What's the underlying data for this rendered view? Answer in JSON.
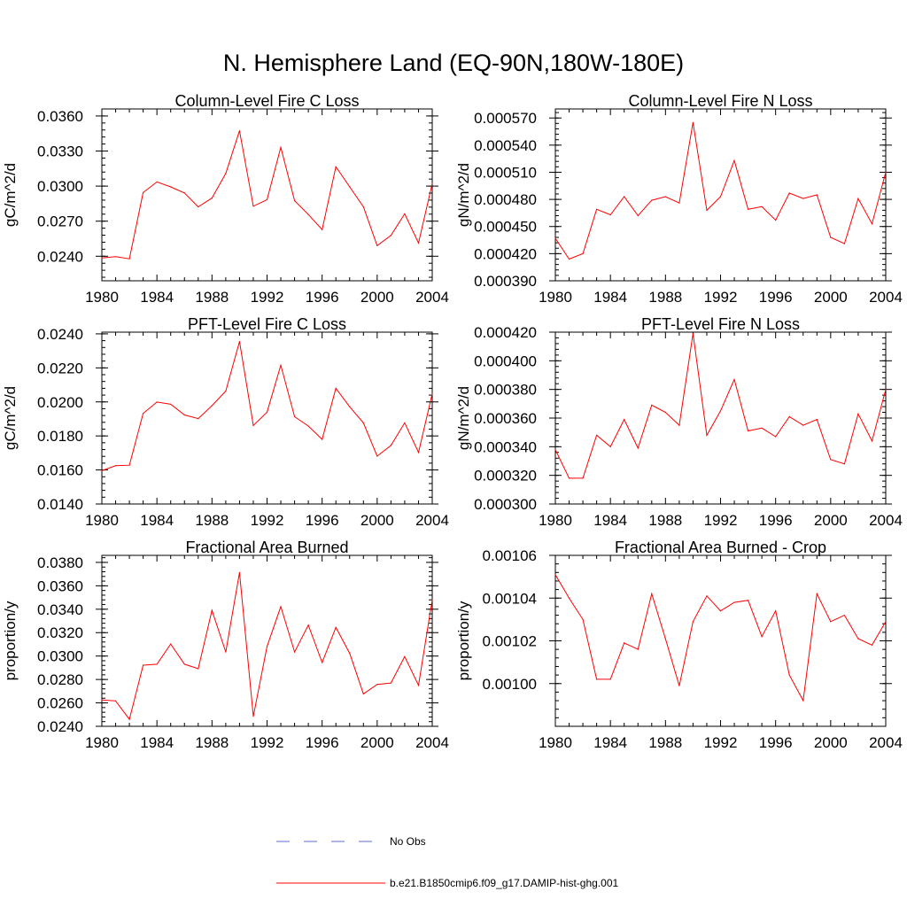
{
  "page": {
    "title": "N. Hemisphere Land (EQ-90N,180W-180E)"
  },
  "legend": {
    "items": [
      {
        "label": "No Obs",
        "color": "#5a6fd0",
        "dashed": true
      },
      {
        "label": "b.e21.B1850cmip6.f09_g17.DAMIP-hist-ghg.001",
        "color": "#ff0000",
        "dashed": false
      }
    ]
  },
  "chart_data": [
    {
      "type": "line",
      "title": "Column-Level Fire C Loss",
      "ylabel": "gC/m^2/d",
      "xlim": [
        1980,
        2004
      ],
      "ylim": [
        0.0219,
        0.0366
      ],
      "xticks": [
        "1980",
        "1984",
        "1988",
        "1992",
        "1996",
        "2000",
        "2004"
      ],
      "yticks": [
        "0.0240",
        "0.0270",
        "0.0300",
        "0.0330",
        "0.0360"
      ],
      "series": [
        {
          "color": "#ff0000",
          "x": [
            1980,
            1981,
            1982,
            1983,
            1984,
            1985,
            1986,
            1987,
            1988,
            1989,
            1990,
            1991,
            1992,
            1993,
            1994,
            1995,
            1996,
            1997,
            1998,
            1999,
            2000,
            2001,
            2002,
            2003,
            2004
          ],
          "values": [
            0.02385,
            0.02396,
            0.02378,
            0.02945,
            0.03036,
            0.02993,
            0.02941,
            0.02823,
            0.02898,
            0.03108,
            0.03473,
            0.02828,
            0.02884,
            0.03331,
            0.02875,
            0.02757,
            0.02628,
            0.03165,
            0.02993,
            0.02823,
            0.02491,
            0.02578,
            0.02763,
            0.02513,
            0.03022
          ]
        }
      ]
    },
    {
      "type": "line",
      "title": "Column-Level Fire N Loss",
      "ylabel": "gN/m^2/d",
      "xlim": [
        1980,
        2004
      ],
      "ylim": [
        0.00039,
        0.00058
      ],
      "xticks": [
        "1980",
        "1984",
        "1988",
        "1992",
        "1996",
        "2000",
        "2004"
      ],
      "yticks": [
        "0.000390",
        "0.000420",
        "0.000450",
        "0.000480",
        "0.000510",
        "0.000540",
        "0.000570"
      ],
      "series": [
        {
          "color": "#ff0000",
          "x": [
            1980,
            1981,
            1982,
            1983,
            1984,
            1985,
            1986,
            1987,
            1988,
            1989,
            1990,
            1991,
            1992,
            1993,
            1994,
            1995,
            1996,
            1997,
            1998,
            1999,
            2000,
            2001,
            2002,
            2003,
            2004
          ],
          "values": [
            0.000437,
            0.000414,
            0.00042,
            0.000469,
            0.000463,
            0.000483,
            0.000462,
            0.000479,
            0.000483,
            0.000476,
            0.000565,
            0.000468,
            0.000483,
            0.000523,
            0.000469,
            0.000472,
            0.000457,
            0.000487,
            0.000481,
            0.000485,
            0.000438,
            0.000431,
            0.000481,
            0.000453,
            0.00051
          ]
        }
      ]
    },
    {
      "type": "line",
      "title": "PFT-Level Fire C Loss",
      "ylabel": "gC/m^2/d",
      "xlim": [
        1980,
        2004
      ],
      "ylim": [
        0.014,
        0.0241
      ],
      "xticks": [
        "1980",
        "1984",
        "1988",
        "1992",
        "1996",
        "2000",
        "2004"
      ],
      "yticks": [
        "0.0140",
        "0.0160",
        "0.0180",
        "0.0200",
        "0.0220",
        "0.0240"
      ],
      "series": [
        {
          "color": "#ff0000",
          "x": [
            1980,
            1981,
            1982,
            1983,
            1984,
            1985,
            1986,
            1987,
            1988,
            1989,
            1990,
            1991,
            1992,
            1993,
            1994,
            1995,
            1996,
            1997,
            1998,
            1999,
            2000,
            2001,
            2002,
            2003,
            2004
          ],
          "values": [
            0.01596,
            0.01625,
            0.01628,
            0.01932,
            0.01999,
            0.01986,
            0.01923,
            0.01902,
            0.01978,
            0.02064,
            0.02355,
            0.01862,
            0.0194,
            0.02216,
            0.01913,
            0.01858,
            0.0178,
            0.0208,
            0.01971,
            0.01877,
            0.01681,
            0.01744,
            0.01877,
            0.01703,
            0.02048
          ]
        }
      ]
    },
    {
      "type": "line",
      "title": "PFT-Level Fire N Loss",
      "ylabel": "gN/m^2/d",
      "xlim": [
        1980,
        2004
      ],
      "ylim": [
        0.0003,
        0.00042
      ],
      "xticks": [
        "1980",
        "1984",
        "1988",
        "1992",
        "1996",
        "2000",
        "2004"
      ],
      "yticks": [
        "0.000300",
        "0.000320",
        "0.000340",
        "0.000360",
        "0.000380",
        "0.000400",
        "0.000420"
      ],
      "series": [
        {
          "color": "#ff0000",
          "x": [
            1980,
            1981,
            1982,
            1983,
            1984,
            1985,
            1986,
            1987,
            1988,
            1989,
            1990,
            1991,
            1992,
            1993,
            1994,
            1995,
            1996,
            1997,
            1998,
            1999,
            2000,
            2001,
            2002,
            2003,
            2004
          ],
          "values": [
            0.000338,
            0.000318,
            0.000318,
            0.000348,
            0.00034,
            0.000359,
            0.000339,
            0.000369,
            0.000364,
            0.000355,
            0.000419,
            0.000348,
            0.000365,
            0.000387,
            0.000351,
            0.000353,
            0.000347,
            0.000361,
            0.000355,
            0.000359,
            0.000331,
            0.000328,
            0.000363,
            0.000344,
            0.00038
          ]
        }
      ]
    },
    {
      "type": "line",
      "title": "Fractional Area Burned",
      "ylabel": "proportion/y",
      "xlim": [
        1980,
        2004
      ],
      "ylim": [
        0.024,
        0.0386
      ],
      "xticks": [
        "1980",
        "1984",
        "1988",
        "1992",
        "1996",
        "2000",
        "2004"
      ],
      "yticks": [
        "0.0240",
        "0.0260",
        "0.0280",
        "0.0300",
        "0.0320",
        "0.0340",
        "0.0360",
        "0.0380"
      ],
      "series": [
        {
          "color": "#ff0000",
          "x": [
            1980,
            1981,
            1982,
            1983,
            1984,
            1985,
            1986,
            1987,
            1988,
            1989,
            1990,
            1991,
            1992,
            1993,
            1994,
            1995,
            1996,
            1997,
            1998,
            1999,
            2000,
            2001,
            2002,
            2003,
            2004
          ],
          "values": [
            0.02625,
            0.02617,
            0.0246,
            0.02922,
            0.0293,
            0.03103,
            0.0293,
            0.02892,
            0.0339,
            0.03035,
            0.03713,
            0.02485,
            0.03082,
            0.03422,
            0.03035,
            0.03265,
            0.02945,
            0.03245,
            0.03023,
            0.02677,
            0.02758,
            0.0277,
            0.02995,
            0.0275,
            0.0348
          ]
        }
      ]
    },
    {
      "type": "line",
      "title": "Fractional Area Burned - Crop",
      "ylabel": "proportion/y",
      "xlim": [
        1980,
        2004
      ],
      "ylim": [
        0.00098,
        0.00106
      ],
      "xticks": [
        "1980",
        "1984",
        "1988",
        "1992",
        "1996",
        "2000",
        "2004"
      ],
      "yticks": [
        "0.00100",
        "0.00102",
        "0.00104",
        "0.00106"
      ],
      "series": [
        {
          "color": "#ff0000",
          "x": [
            1980,
            1981,
            1982,
            1983,
            1984,
            1985,
            1986,
            1987,
            1988,
            1989,
            1990,
            1991,
            1992,
            1993,
            1994,
            1995,
            1996,
            1997,
            1998,
            1999,
            2000,
            2001,
            2002,
            2003,
            2004
          ],
          "values": [
            0.001051,
            0.00104,
            0.00103,
            0.001002,
            0.001002,
            0.001019,
            0.001016,
            0.001042,
            0.001021,
            0.000999,
            0.001029,
            0.001041,
            0.001034,
            0.001038,
            0.001039,
            0.001022,
            0.001034,
            0.001004,
            0.000992,
            0.001042,
            0.001029,
            0.001032,
            0.001021,
            0.001018,
            0.001029
          ]
        }
      ]
    }
  ]
}
